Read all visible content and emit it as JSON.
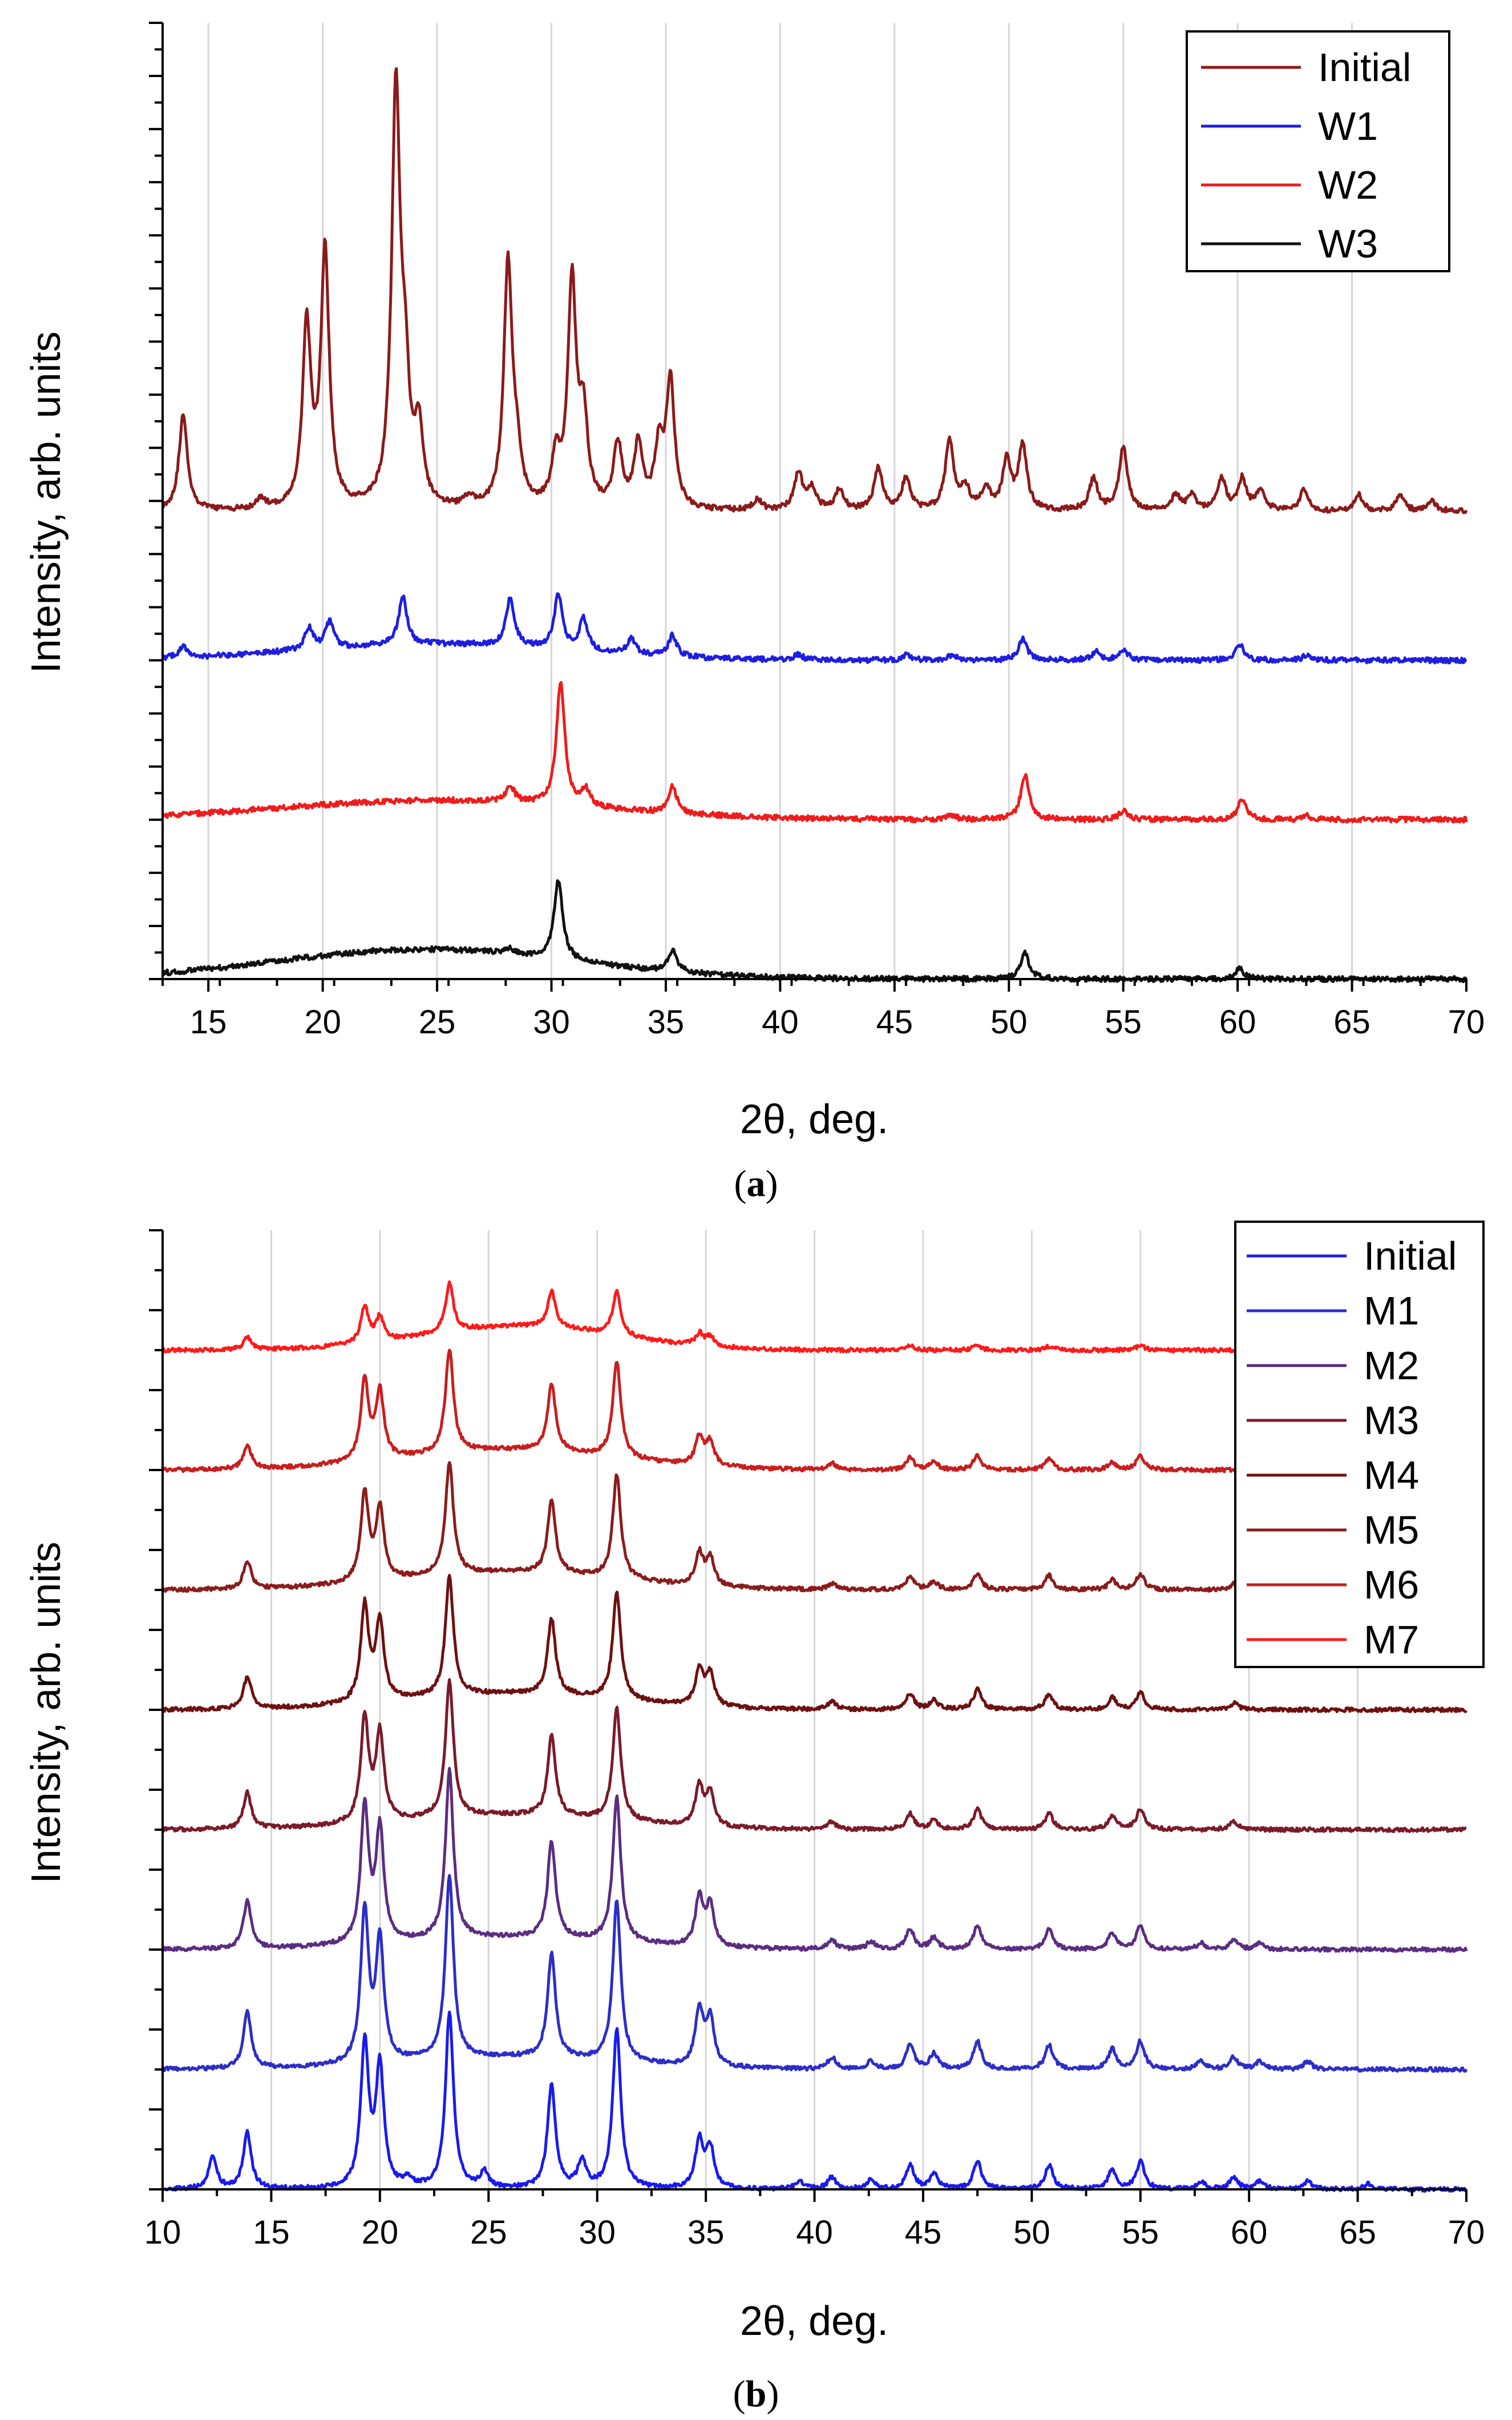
{
  "chart_data": [
    {
      "panel": "(a)",
      "panel_letter": "a",
      "type": "line",
      "title": "",
      "xlabel": "2θ, deg.",
      "ylabel": "Intensity, arb. units",
      "xlim": [
        13,
        70
      ],
      "ylim": [
        0,
        9
      ],
      "grid": "vertical",
      "legend_position": "top-right",
      "xticks": [
        15,
        20,
        25,
        30,
        35,
        40,
        45,
        50,
        55,
        60,
        65,
        70
      ],
      "series": [
        {
          "name": "Initial",
          "color": "#8b1a1a",
          "baseline": 4.4,
          "broad": [],
          "peaks": [
            [
              13.9,
              0.9
            ],
            [
              17.3,
              0.1
            ],
            [
              19.3,
              1.7
            ],
            [
              20.1,
              2.4
            ],
            [
              23.2,
              3.9
            ],
            [
              23.6,
              1.0
            ],
            [
              24.2,
              0.7
            ],
            [
              26.4,
              0.1
            ],
            [
              28.1,
              2.3
            ],
            [
              28.5,
              0.4
            ],
            [
              30.2,
              0.45
            ],
            [
              30.9,
              2.1
            ],
            [
              31.4,
              0.8
            ],
            [
              32.9,
              0.6
            ],
            [
              33.8,
              0.6
            ],
            [
              34.7,
              0.55
            ],
            [
              35.2,
              1.2
            ],
            [
              39.0,
              0.1
            ],
            [
              40.8,
              0.35
            ],
            [
              41.4,
              0.2
            ],
            [
              42.6,
              0.2
            ],
            [
              44.3,
              0.4
            ],
            [
              45.5,
              0.3
            ],
            [
              47.4,
              0.65
            ],
            [
              48.1,
              0.2
            ],
            [
              49.0,
              0.2
            ],
            [
              49.9,
              0.45
            ],
            [
              50.6,
              0.6
            ],
            [
              53.7,
              0.3
            ],
            [
              55.0,
              0.6
            ],
            [
              57.3,
              0.15
            ],
            [
              58.0,
              0.15
            ],
            [
              59.3,
              0.3
            ],
            [
              60.2,
              0.3
            ],
            [
              61.0,
              0.2
            ],
            [
              62.9,
              0.2
            ],
            [
              65.3,
              0.15
            ],
            [
              67.1,
              0.15
            ],
            [
              68.5,
              0.1
            ]
          ]
        },
        {
          "name": "W1",
          "color": "#1e1ee0",
          "baseline": 3.0,
          "broad": [
            [
              25.0,
              6.0,
              0.15
            ]
          ],
          "peaks": [
            [
              13.9,
              0.1
            ],
            [
              19.4,
              0.2
            ],
            [
              20.3,
              0.25
            ],
            [
              23.5,
              0.45
            ],
            [
              28.2,
              0.45
            ],
            [
              30.3,
              0.5
            ],
            [
              31.4,
              0.3
            ],
            [
              33.5,
              0.15
            ],
            [
              35.3,
              0.2
            ],
            [
              40.8,
              0.05
            ],
            [
              45.5,
              0.05
            ],
            [
              47.5,
              0.05
            ],
            [
              50.6,
              0.2
            ],
            [
              53.8,
              0.08
            ],
            [
              55.0,
              0.1
            ],
            [
              60.1,
              0.15
            ],
            [
              63.0,
              0.04
            ]
          ]
        },
        {
          "name": "W2",
          "color": "#ee1c1c",
          "baseline": 1.5,
          "broad": [
            [
              25.0,
              7.0,
              0.18
            ]
          ],
          "peaks": [
            [
              28.2,
              0.15
            ],
            [
              30.4,
              1.15
            ],
            [
              31.5,
              0.15
            ],
            [
              35.3,
              0.25
            ],
            [
              47.5,
              0.04
            ],
            [
              50.7,
              0.42
            ],
            [
              55.0,
              0.08
            ],
            [
              60.2,
              0.2
            ],
            [
              63.0,
              0.04
            ]
          ]
        },
        {
          "name": "W3",
          "color": "#111111",
          "baseline": 0.0,
          "broad": [
            [
              24.5,
              6.5,
              0.28
            ]
          ],
          "peaks": [
            [
              28.1,
              0.05
            ],
            [
              30.3,
              0.75
            ],
            [
              35.3,
              0.2
            ],
            [
              50.7,
              0.25
            ],
            [
              60.1,
              0.1
            ]
          ]
        }
      ]
    },
    {
      "panel": "(b)",
      "panel_letter": "b",
      "type": "line",
      "title": "",
      "xlabel": "2θ, deg.",
      "ylabel": "Intensity, arb. units",
      "xlim": [
        10,
        70
      ],
      "ylim": [
        0,
        12
      ],
      "grid": "vertical",
      "legend_position": "top-right",
      "xticks": [
        10,
        15,
        20,
        25,
        30,
        35,
        40,
        45,
        50,
        55,
        60,
        65,
        70
      ],
      "series": [
        {
          "name": "Initial",
          "color": "#1a1aee",
          "baseline": 0.0,
          "broad": [],
          "peaks": [
            [
              12.3,
              0.4
            ],
            [
              13.9,
              0.7
            ],
            [
              19.3,
              1.8
            ],
            [
              20.0,
              1.5
            ],
            [
              21.3,
              0.1
            ],
            [
              23.2,
              2.2
            ],
            [
              24.8,
              0.2
            ],
            [
              27.9,
              1.3
            ],
            [
              29.3,
              0.35
            ],
            [
              30.9,
              2.0
            ],
            [
              34.7,
              0.6
            ],
            [
              35.2,
              0.5
            ],
            [
              39.3,
              0.1
            ],
            [
              40.8,
              0.15
            ],
            [
              42.6,
              0.12
            ],
            [
              44.4,
              0.3
            ],
            [
              45.5,
              0.2
            ],
            [
              47.5,
              0.35
            ],
            [
              50.8,
              0.3
            ],
            [
              53.7,
              0.25
            ],
            [
              55.0,
              0.35
            ],
            [
              57.8,
              0.1
            ],
            [
              59.3,
              0.15
            ],
            [
              60.5,
              0.1
            ],
            [
              62.7,
              0.1
            ],
            [
              65.5,
              0.07
            ]
          ]
        },
        {
          "name": "M1",
          "color": "#2d2dc8",
          "baseline": 1.5,
          "broad": [
            [
              26.0,
              5.0,
              0.15
            ]
          ],
          "peaks": [
            [
              13.9,
              0.7
            ],
            [
              19.3,
              1.9
            ],
            [
              20.0,
              1.5
            ],
            [
              23.2,
              2.3
            ],
            [
              27.9,
              1.3
            ],
            [
              30.9,
              2.0
            ],
            [
              34.7,
              0.7
            ],
            [
              35.2,
              0.6
            ],
            [
              40.8,
              0.15
            ],
            [
              42.6,
              0.1
            ],
            [
              44.4,
              0.3
            ],
            [
              45.5,
              0.2
            ],
            [
              47.5,
              0.35
            ],
            [
              50.8,
              0.3
            ],
            [
              53.7,
              0.25
            ],
            [
              55.0,
              0.35
            ],
            [
              57.8,
              0.1
            ],
            [
              59.3,
              0.15
            ],
            [
              60.5,
              0.1
            ],
            [
              62.7,
              0.1
            ]
          ]
        },
        {
          "name": "M2",
          "color": "#5a2d82",
          "baseline": 3.0,
          "broad": [
            [
              26.0,
              5.0,
              0.15
            ]
          ],
          "peaks": [
            [
              13.9,
              0.6
            ],
            [
              19.3,
              1.7
            ],
            [
              20.0,
              1.4
            ],
            [
              23.2,
              2.1
            ],
            [
              27.9,
              1.2
            ],
            [
              30.9,
              1.8
            ],
            [
              34.7,
              0.6
            ],
            [
              35.2,
              0.5
            ],
            [
              40.8,
              0.12
            ],
            [
              42.6,
              0.1
            ],
            [
              44.4,
              0.25
            ],
            [
              45.5,
              0.15
            ],
            [
              47.5,
              0.3
            ],
            [
              50.8,
              0.25
            ],
            [
              53.7,
              0.2
            ],
            [
              55.0,
              0.3
            ],
            [
              57.8,
              0.08
            ],
            [
              59.3,
              0.12
            ],
            [
              60.5,
              0.08
            ]
          ]
        },
        {
          "name": "M3",
          "color": "#7a1a2a",
          "baseline": 4.5,
          "broad": [
            [
              26.0,
              5.0,
              0.18
            ]
          ],
          "peaks": [
            [
              13.9,
              0.45
            ],
            [
              19.3,
              1.3
            ],
            [
              20.0,
              1.1
            ],
            [
              23.2,
              1.7
            ],
            [
              27.9,
              1.0
            ],
            [
              30.9,
              1.4
            ],
            [
              34.7,
              0.5
            ],
            [
              35.2,
              0.4
            ],
            [
              40.8,
              0.1
            ],
            [
              44.4,
              0.2
            ],
            [
              45.5,
              0.12
            ],
            [
              47.5,
              0.25
            ],
            [
              50.8,
              0.2
            ],
            [
              53.7,
              0.18
            ],
            [
              55.0,
              0.25
            ],
            [
              59.3,
              0.1
            ]
          ]
        },
        {
          "name": "M4",
          "color": "#6e1010",
          "baseline": 6.0,
          "broad": [
            [
              26.0,
              5.0,
              0.2
            ]
          ],
          "peaks": [
            [
              13.9,
              0.4
            ],
            [
              19.3,
              1.2
            ],
            [
              20.0,
              1.0
            ],
            [
              23.2,
              1.5
            ],
            [
              27.9,
              0.95
            ],
            [
              30.9,
              1.35
            ],
            [
              34.7,
              0.45
            ],
            [
              35.2,
              0.4
            ],
            [
              40.8,
              0.1
            ],
            [
              44.4,
              0.2
            ],
            [
              45.5,
              0.12
            ],
            [
              47.5,
              0.25
            ],
            [
              50.8,
              0.2
            ],
            [
              53.7,
              0.15
            ],
            [
              55.0,
              0.22
            ],
            [
              59.3,
              0.08
            ]
          ]
        },
        {
          "name": "M5",
          "color": "#8b1c1c",
          "baseline": 7.5,
          "broad": [
            [
              26.0,
              5.0,
              0.22
            ]
          ],
          "peaks": [
            [
              13.9,
              0.35
            ],
            [
              19.3,
              1.1
            ],
            [
              20.0,
              0.9
            ],
            [
              23.2,
              1.4
            ],
            [
              27.9,
              0.9
            ],
            [
              30.9,
              1.3
            ],
            [
              34.7,
              0.4
            ],
            [
              35.2,
              0.35
            ],
            [
              40.8,
              0.08
            ],
            [
              44.4,
              0.18
            ],
            [
              45.5,
              0.1
            ],
            [
              47.5,
              0.2
            ],
            [
              50.8,
              0.18
            ],
            [
              53.7,
              0.12
            ],
            [
              55.0,
              0.2
            ],
            [
              59.3,
              0.08
            ]
          ]
        },
        {
          "name": "M6",
          "color": "#c81e1e",
          "baseline": 9.0,
          "broad": [
            [
              26.0,
              5.0,
              0.25
            ]
          ],
          "peaks": [
            [
              13.9,
              0.3
            ],
            [
              19.3,
              1.0
            ],
            [
              20.0,
              0.85
            ],
            [
              23.2,
              1.3
            ],
            [
              27.9,
              0.85
            ],
            [
              30.9,
              1.2
            ],
            [
              34.7,
              0.35
            ],
            [
              35.2,
              0.3
            ],
            [
              40.8,
              0.08
            ],
            [
              44.4,
              0.15
            ],
            [
              45.5,
              0.1
            ],
            [
              47.5,
              0.18
            ],
            [
              50.8,
              0.15
            ],
            [
              53.7,
              0.1
            ],
            [
              55.0,
              0.18
            ]
          ]
        },
        {
          "name": "M7",
          "color": "#ff1a1a",
          "baseline": 10.5,
          "broad": [
            [
              26.5,
              4.5,
              0.3
            ]
          ],
          "peaks": [
            [
              13.9,
              0.15
            ],
            [
              19.3,
              0.45
            ],
            [
              20.0,
              0.3
            ],
            [
              23.2,
              0.6
            ],
            [
              27.9,
              0.45
            ],
            [
              30.9,
              0.55
            ],
            [
              34.7,
              0.15
            ],
            [
              35.2,
              0.12
            ],
            [
              44.4,
              0.05
            ],
            [
              47.5,
              0.06
            ],
            [
              50.8,
              0.05
            ],
            [
              55.0,
              0.06
            ]
          ]
        }
      ]
    }
  ]
}
